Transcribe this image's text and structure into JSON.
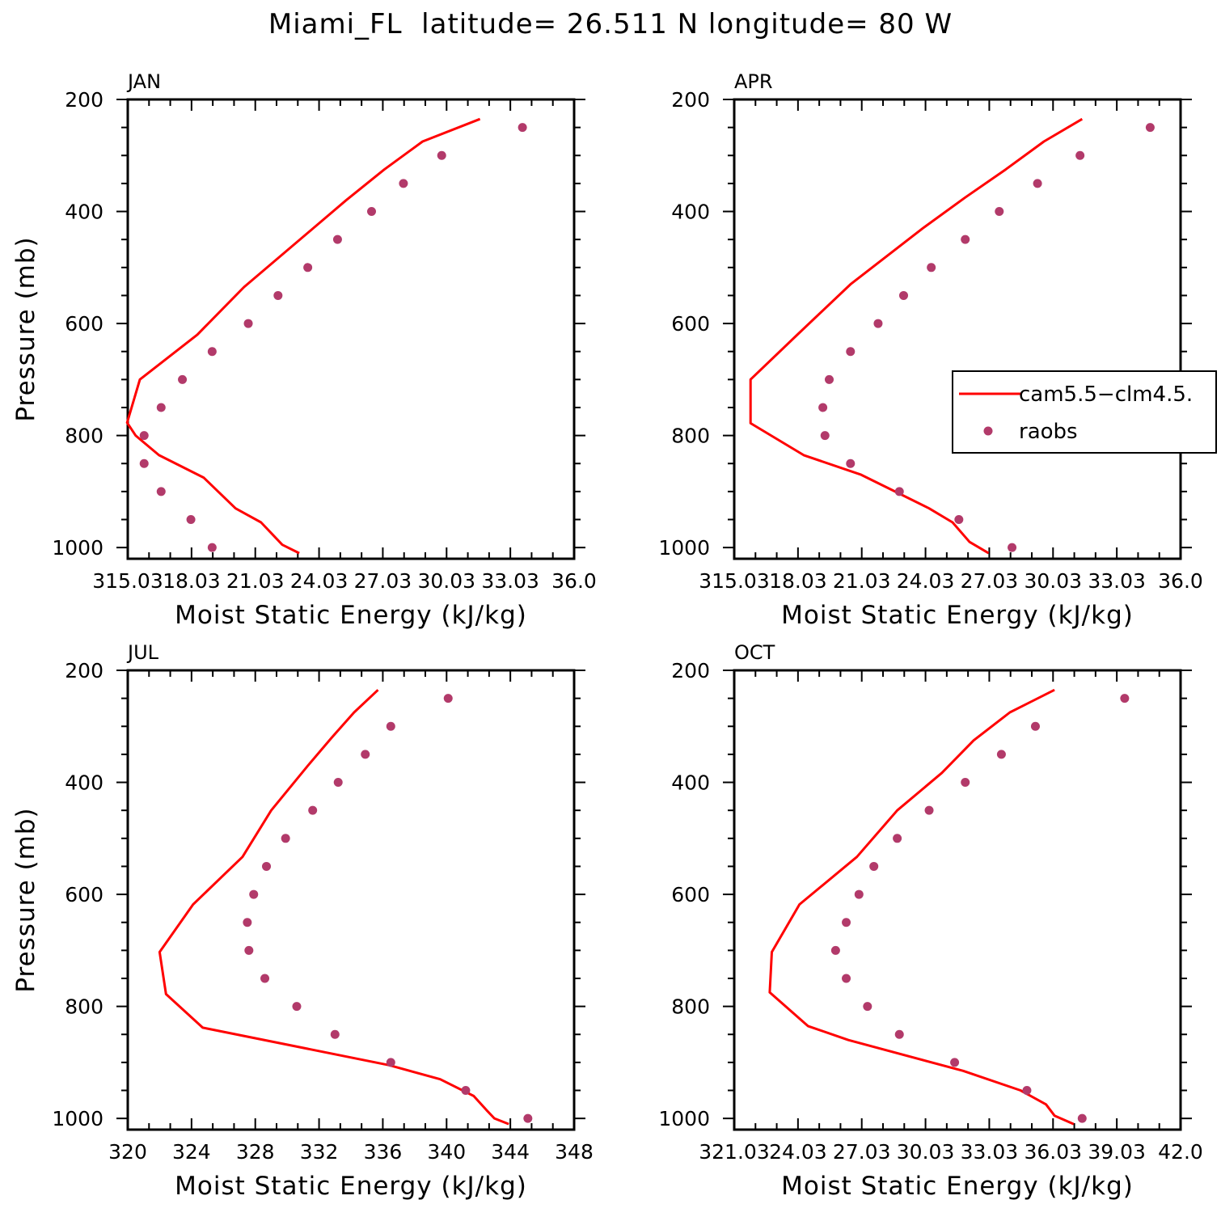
{
  "page": {
    "title": "Miami_FL  latitude= 26.511 N longitude= 80 W"
  },
  "colors": {
    "model_line": "#ff0000",
    "obs_marker": "#b23a6a",
    "axis": "#000000"
  },
  "legend": {
    "model_label": "cam5.5−clm4.5.",
    "obs_label": "raobs"
  },
  "chart_data": [
    {
      "type": "line",
      "month": "JAN",
      "xlabel": "Moist Static Energy (kJ/kg)",
      "ylabel": "Pressure (mb)",
      "xlim": [
        315.03,
        336.03
      ],
      "ylim": [
        1020,
        200
      ],
      "xticks": [
        315.03,
        318.03,
        321.03,
        324.03,
        327.03,
        330.03,
        333.03,
        336.03
      ],
      "xtick_labels": [
        "315.03",
        "18.03",
        "21.03",
        "24.03",
        "27.03",
        "30.03",
        "33.03",
        "36.0"
      ],
      "yticks": [
        200,
        400,
        600,
        800,
        1000
      ],
      "ytick_labels": [
        "200",
        "400",
        "600",
        "800",
        "1000"
      ],
      "model": {
        "name": "cam5.5−clm4.5.",
        "x": [
          331.6,
          328.9,
          327.1,
          325.3,
          320.5,
          318.3,
          315.6,
          315.0,
          315.4,
          316.5,
          318.6,
          320.1,
          321.3,
          322.3,
          323.1
        ],
        "y": [
          235,
          275,
          325,
          380,
          535,
          620,
          700,
          777,
          800,
          835,
          875,
          930,
          955,
          995,
          1010
        ]
      },
      "obs": {
        "name": "raobs",
        "x": [
          333.6,
          329.8,
          328.0,
          326.5,
          324.9,
          323.5,
          322.1,
          320.7,
          319.0,
          317.6,
          316.6,
          315.8,
          315.8,
          316.6,
          318.0,
          319.0
        ],
        "y": [
          250,
          300,
          350,
          400,
          450,
          500,
          550,
          600,
          650,
          700,
          750,
          800,
          850,
          900,
          950,
          1000
        ]
      },
      "show_legend": false,
      "show_ylabel": true
    },
    {
      "type": "line",
      "month": "APR",
      "xlabel": "Moist Static Energy (kJ/kg)",
      "ylabel": "",
      "xlim": [
        315.03,
        336.03
      ],
      "ylim": [
        1020,
        200
      ],
      "xticks": [
        315.03,
        318.03,
        321.03,
        324.03,
        327.03,
        330.03,
        333.03,
        336.03
      ],
      "xtick_labels": [
        "315.03",
        "18.03",
        "21.03",
        "24.03",
        "27.03",
        "30.03",
        "33.03",
        "36.0"
      ],
      "yticks": [
        200,
        400,
        600,
        800,
        1000
      ],
      "ytick_labels": [
        "200",
        "400",
        "600",
        "800",
        "1000"
      ],
      "model": {
        "name": "cam5.5−clm4.5.",
        "x": [
          331.4,
          329.6,
          327.8,
          325.9,
          323.9,
          320.5,
          318.0,
          315.8,
          315.8,
          318.3,
          321.0,
          322.6,
          324.2,
          325.3,
          326.1,
          327.0
        ],
        "y": [
          235,
          275,
          325,
          375,
          430,
          530,
          620,
          700,
          778,
          835,
          870,
          900,
          930,
          955,
          990,
          1010
        ]
      },
      "obs": {
        "name": "raobs",
        "x": [
          334.6,
          331.3,
          329.3,
          327.5,
          325.9,
          324.3,
          323.0,
          321.8,
          320.5,
          319.5,
          319.2,
          319.3,
          320.5,
          322.8,
          325.6,
          328.1
        ],
        "y": [
          250,
          300,
          350,
          400,
          450,
          500,
          550,
          600,
          650,
          700,
          750,
          800,
          850,
          900,
          950,
          1000
        ]
      },
      "show_legend": true,
      "show_ylabel": false
    },
    {
      "type": "line",
      "month": "JUL",
      "xlabel": "Moist Static Energy (kJ/kg)",
      "ylabel": "Pressure (mb)",
      "xlim": [
        320,
        348
      ],
      "ylim": [
        1020,
        200
      ],
      "xticks": [
        320,
        324,
        328,
        332,
        336,
        340,
        344,
        348
      ],
      "xtick_labels": [
        "320",
        "324",
        "328",
        "332",
        "336",
        "340",
        "344",
        "348"
      ],
      "yticks": [
        200,
        400,
        600,
        800,
        1000
      ],
      "ytick_labels": [
        "200",
        "400",
        "600",
        "800",
        "1000"
      ],
      "model": {
        "name": "cam5.5−clm4.5.",
        "x": [
          335.7,
          334.2,
          332.8,
          331.3,
          329.0,
          327.2,
          324.1,
          322.0,
          322.4,
          324.7,
          336.4,
          339.6,
          341.7,
          342.5,
          343.0,
          343.9
        ],
        "y": [
          235,
          275,
          320,
          370,
          450,
          533,
          618,
          703,
          778,
          838,
          905,
          930,
          960,
          985,
          1000,
          1010
        ]
      },
      "obs": {
        "name": "raobs",
        "x": [
          340.1,
          336.5,
          334.9,
          333.2,
          331.6,
          329.9,
          328.7,
          327.9,
          327.5,
          327.6,
          328.6,
          330.6,
          333.0,
          336.5,
          341.2,
          345.1
        ],
        "y": [
          250,
          300,
          350,
          400,
          450,
          500,
          550,
          600,
          650,
          700,
          750,
          800,
          850,
          900,
          950,
          1000
        ]
      },
      "show_legend": false,
      "show_ylabel": true
    },
    {
      "type": "line",
      "month": "OCT",
      "xlabel": "Moist Static Energy (kJ/kg)",
      "ylabel": "",
      "xlim": [
        321.03,
        342.03
      ],
      "ylim": [
        1020,
        200
      ],
      "xticks": [
        321.03,
        324.03,
        327.03,
        330.03,
        333.03,
        336.03,
        339.03,
        342.03
      ],
      "xtick_labels": [
        "321.03",
        "24.03",
        "27.03",
        "30.03",
        "33.03",
        "36.03",
        "39.03",
        "42.0"
      ],
      "yticks": [
        200,
        400,
        600,
        800,
        1000
      ],
      "ytick_labels": [
        "200",
        "400",
        "600",
        "800",
        "1000"
      ],
      "model": {
        "name": "cam5.5−clm4.5.",
        "x": [
          336.1,
          334.0,
          332.3,
          330.8,
          328.7,
          326.8,
          324.1,
          322.8,
          322.7,
          324.5,
          326.4,
          331.8,
          334.5,
          335.7,
          336.1,
          337.0
        ],
        "y": [
          235,
          275,
          325,
          383,
          450,
          533,
          618,
          703,
          775,
          835,
          860,
          915,
          950,
          975,
          995,
          1010
        ]
      },
      "obs": {
        "name": "raobs",
        "x": [
          339.4,
          335.2,
          333.6,
          331.9,
          330.2,
          328.7,
          327.6,
          326.9,
          326.3,
          325.8,
          326.3,
          327.3,
          328.8,
          331.4,
          334.8,
          337.4
        ],
        "y": [
          250,
          300,
          350,
          400,
          450,
          500,
          550,
          600,
          650,
          700,
          750,
          800,
          850,
          900,
          950,
          1000
        ]
      },
      "show_legend": false,
      "show_ylabel": false
    }
  ]
}
